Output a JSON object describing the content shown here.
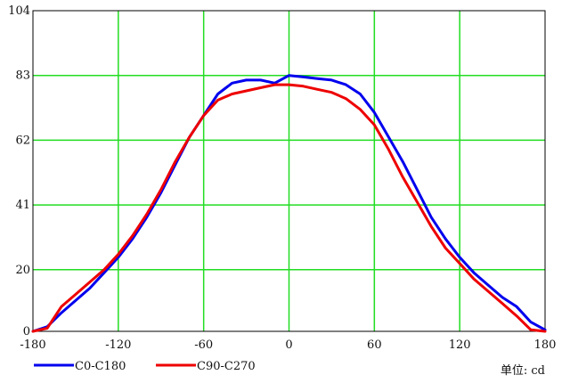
{
  "chart_data": {
    "type": "line",
    "xlim": [
      -180,
      180
    ],
    "ylim": [
      0,
      104
    ],
    "xticks": [
      -180,
      -120,
      -60,
      0,
      60,
      120,
      180
    ],
    "yticks": [
      0,
      20,
      41,
      62,
      83,
      104
    ],
    "grid": true,
    "grid_color": "#22dd22",
    "unit_label": "单位: cd",
    "legend_position": "bottom-left",
    "series": [
      {
        "name": "C0-C180",
        "color": "#0000ee",
        "x": [
          -180,
          -170,
          -160,
          -150,
          -140,
          -130,
          -120,
          -110,
          -100,
          -90,
          -80,
          -70,
          -60,
          -50,
          -40,
          -30,
          -20,
          -10,
          0,
          10,
          20,
          30,
          40,
          50,
          60,
          70,
          80,
          90,
          100,
          110,
          120,
          130,
          140,
          150,
          160,
          170,
          180
        ],
        "y": [
          0,
          1.5,
          6,
          10,
          14,
          19,
          24,
          30,
          37,
          45,
          54,
          63,
          70,
          77,
          80.5,
          81.5,
          81.5,
          80.5,
          83,
          82.5,
          82,
          81.5,
          80,
          77,
          71,
          63,
          55,
          46,
          37,
          30,
          24,
          19,
          15,
          11,
          8,
          3,
          0.5
        ]
      },
      {
        "name": "C90-C270",
        "color": "#ee0000",
        "x": [
          -180,
          -170,
          -160,
          -150,
          -140,
          -130,
          -120,
          -110,
          -100,
          -90,
          -80,
          -70,
          -60,
          -50,
          -40,
          -30,
          -20,
          -10,
          0,
          10,
          20,
          30,
          40,
          50,
          60,
          70,
          80,
          90,
          100,
          110,
          120,
          130,
          140,
          150,
          160,
          170,
          180
        ],
        "y": [
          0,
          1,
          8,
          12,
          16,
          20,
          25,
          31,
          38,
          46,
          55,
          63,
          70,
          75,
          77,
          78,
          79,
          80,
          80,
          79.5,
          78.5,
          77.5,
          75.5,
          72,
          67,
          59,
          50,
          42,
          34,
          27,
          22,
          17,
          13,
          9,
          5,
          0.5,
          0
        ]
      }
    ]
  }
}
